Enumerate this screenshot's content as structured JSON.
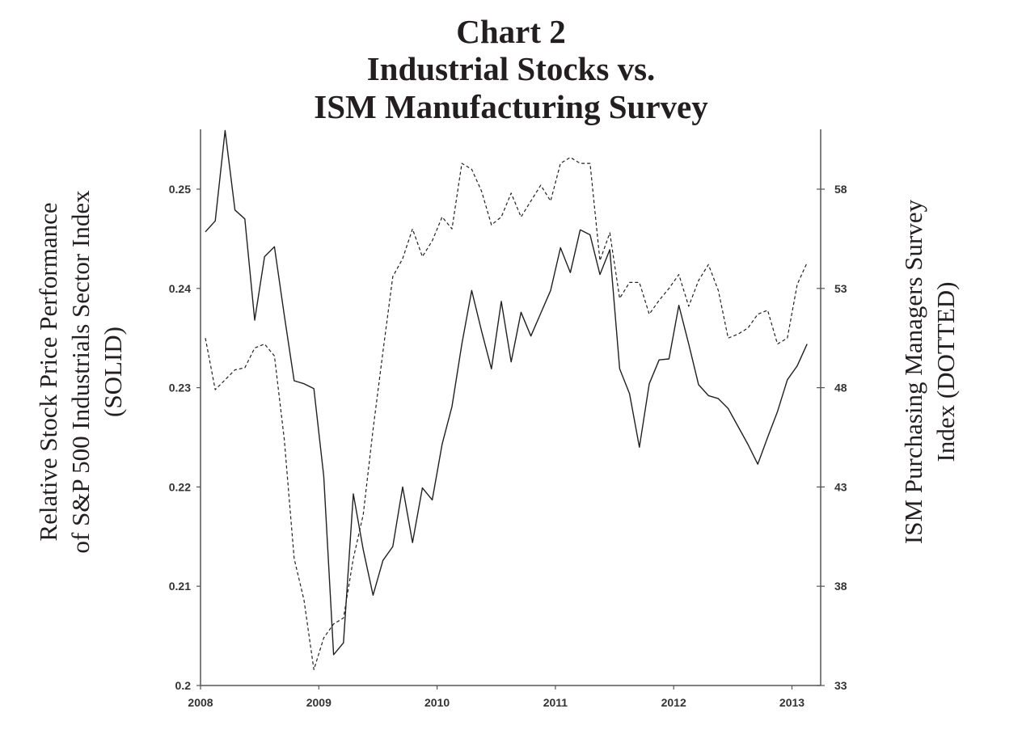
{
  "chart_data": {
    "type": "line",
    "title": [
      "Chart 2",
      "Industrial Stocks vs.",
      "ISM Manufacturing Survey"
    ],
    "x_start": "2008-01",
    "frequency": "monthly",
    "x_tick_labels": [
      "2008",
      "2009",
      "2010",
      "2011",
      "2012",
      "2013"
    ],
    "ylabel_left": [
      "Relative Stock Price Performance",
      "of S&P 500 Industrials Sector Index",
      "(SOLID)"
    ],
    "ylabel_right": [
      "ISM Purchasing Managers Survey",
      "Index (DOTTED)"
    ],
    "ylim_left": [
      0.2,
      0.25
    ],
    "ylim_right": [
      33,
      58
    ],
    "y_tick_labels_left": [
      "0.2",
      "0.21",
      "0.22",
      "0.23",
      "0.24",
      "0.25"
    ],
    "y_tick_labels_right": [
      "33",
      "38",
      "43",
      "48",
      "53",
      "58"
    ],
    "grid": false,
    "series": [
      {
        "name": "S&P 500 Industrials relative performance",
        "axis": "left",
        "style": "solid",
        "color": "#231f20",
        "values": [
          0.2457,
          0.2468,
          0.2559,
          0.2479,
          0.247,
          0.2368,
          0.2432,
          0.2442,
          0.2373,
          0.2307,
          0.2304,
          0.2299,
          0.2211,
          0.2031,
          0.2043,
          0.2193,
          0.2137,
          0.2091,
          0.2126,
          0.214,
          0.22,
          0.2144,
          0.2199,
          0.2187,
          0.2243,
          0.2281,
          0.2344,
          0.2398,
          0.2357,
          0.2319,
          0.2387,
          0.2326,
          0.2376,
          0.2352,
          0.2375,
          0.2398,
          0.2441,
          0.2416,
          0.2459,
          0.2454,
          0.2414,
          0.2439,
          0.2319,
          0.2294,
          0.224,
          0.2304,
          0.2328,
          0.2329,
          0.2383,
          0.2344,
          0.2303,
          0.2292,
          0.2289,
          0.2279,
          0.2261,
          0.2243,
          0.2223,
          0.225,
          0.2276,
          0.2308,
          0.2322,
          0.2344
        ]
      },
      {
        "name": "ISM Purchasing Managers Index",
        "axis": "right",
        "style": "dotted",
        "color": "#231f20",
        "values": [
          50.5,
          47.9,
          48.4,
          48.9,
          49.0,
          50.0,
          50.2,
          49.6,
          45.4,
          39.4,
          37.3,
          33.8,
          35.4,
          36.1,
          36.4,
          39.4,
          41.6,
          45.9,
          49.8,
          53.6,
          54.5,
          56.0,
          54.6,
          55.4,
          56.6,
          56.0,
          59.3,
          59.0,
          57.9,
          56.2,
          56.6,
          57.8,
          56.6,
          57.4,
          58.2,
          57.4,
          59.3,
          59.6,
          59.3,
          59.3,
          54.4,
          55.8,
          52.5,
          53.3,
          53.3,
          51.7,
          52.4,
          53.0,
          53.7,
          52.1,
          53.4,
          54.2,
          52.9,
          50.5,
          50.7,
          51.0,
          51.7,
          51.9,
          50.2,
          50.5,
          53.2,
          54.3
        ]
      }
    ]
  }
}
